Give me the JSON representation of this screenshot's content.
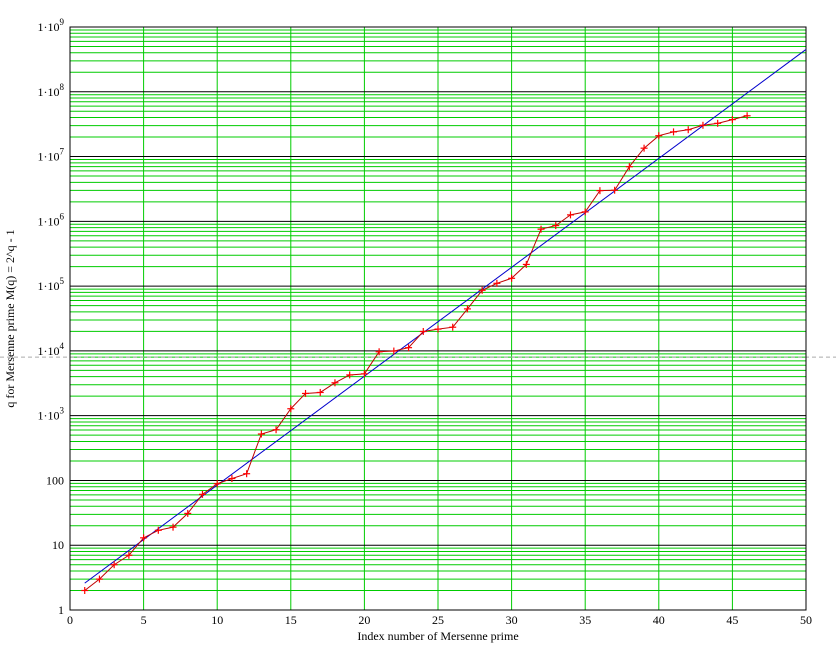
{
  "chart_data": {
    "type": "scatter",
    "xlabel": "Index number of Mersenne prime",
    "ylabel": "q for Mersenne prime M(q) = 2^q - 1",
    "xlim": [
      0,
      50
    ],
    "ylim": [
      1,
      1000000000
    ],
    "yscale": "log",
    "grid": true,
    "x_ticks": [
      {
        "v": 0,
        "label": "0"
      },
      {
        "v": 5,
        "label": "5"
      },
      {
        "v": 10,
        "label": "10"
      },
      {
        "v": 15,
        "label": "15"
      },
      {
        "v": 20,
        "label": "20"
      },
      {
        "v": 25,
        "label": "25"
      },
      {
        "v": 30,
        "label": "30"
      },
      {
        "v": 35,
        "label": "35"
      },
      {
        "v": 40,
        "label": "40"
      },
      {
        "v": 45,
        "label": "45"
      },
      {
        "v": 50,
        "label": "50"
      }
    ],
    "y_ticks": [
      {
        "v": 1,
        "label": "1",
        "exp": ""
      },
      {
        "v": 10,
        "label": "10",
        "exp": ""
      },
      {
        "v": 100,
        "label": "100",
        "exp": ""
      },
      {
        "v": 1000,
        "label": "1·10",
        "exp": "3"
      },
      {
        "v": 10000,
        "label": "1·10",
        "exp": "4"
      },
      {
        "v": 100000,
        "label": "1·10",
        "exp": "5"
      },
      {
        "v": 1000000,
        "label": "1·10",
        "exp": "6"
      },
      {
        "v": 10000000,
        "label": "1·10",
        "exp": "7"
      },
      {
        "v": 100000000,
        "label": "1·10",
        "exp": "8"
      },
      {
        "v": 1000000000,
        "label": "1·10",
        "exp": "9"
      }
    ],
    "series": [
      {
        "kind": "data",
        "color": "#ff0000",
        "line_color": "#c00000",
        "marker": "+",
        "x": [
          1,
          2,
          3,
          4,
          5,
          6,
          7,
          8,
          9,
          10,
          11,
          12,
          13,
          14,
          15,
          16,
          17,
          18,
          19,
          20,
          21,
          22,
          23,
          24,
          25,
          26,
          27,
          28,
          29,
          30,
          31,
          32,
          33,
          34,
          35,
          36,
          37,
          38,
          39,
          40,
          41,
          42,
          43,
          44,
          45,
          46
        ],
        "y": [
          2,
          3,
          5,
          7,
          13,
          17,
          19,
          31,
          61,
          89,
          107,
          127,
          521,
          607,
          1279,
          2203,
          2281,
          3217,
          4253,
          4423,
          9689,
          9941,
          11213,
          19937,
          21701,
          23209,
          44497,
          86243,
          110503,
          132049,
          216091,
          756839,
          859433,
          1257787,
          1398269,
          2976221,
          3021377,
          6972593,
          13466917,
          20996011,
          24036583,
          25964951,
          30402457,
          32582657,
          37156667,
          42643801
        ]
      },
      {
        "kind": "fit",
        "color": "#0000cc",
        "x": [
          1,
          50
        ],
        "y": [
          2.6,
          450000000
        ]
      }
    ],
    "grid_colors": {
      "major": "#000000",
      "minor": "#00cc00",
      "reference": "#aaaaaa"
    }
  }
}
